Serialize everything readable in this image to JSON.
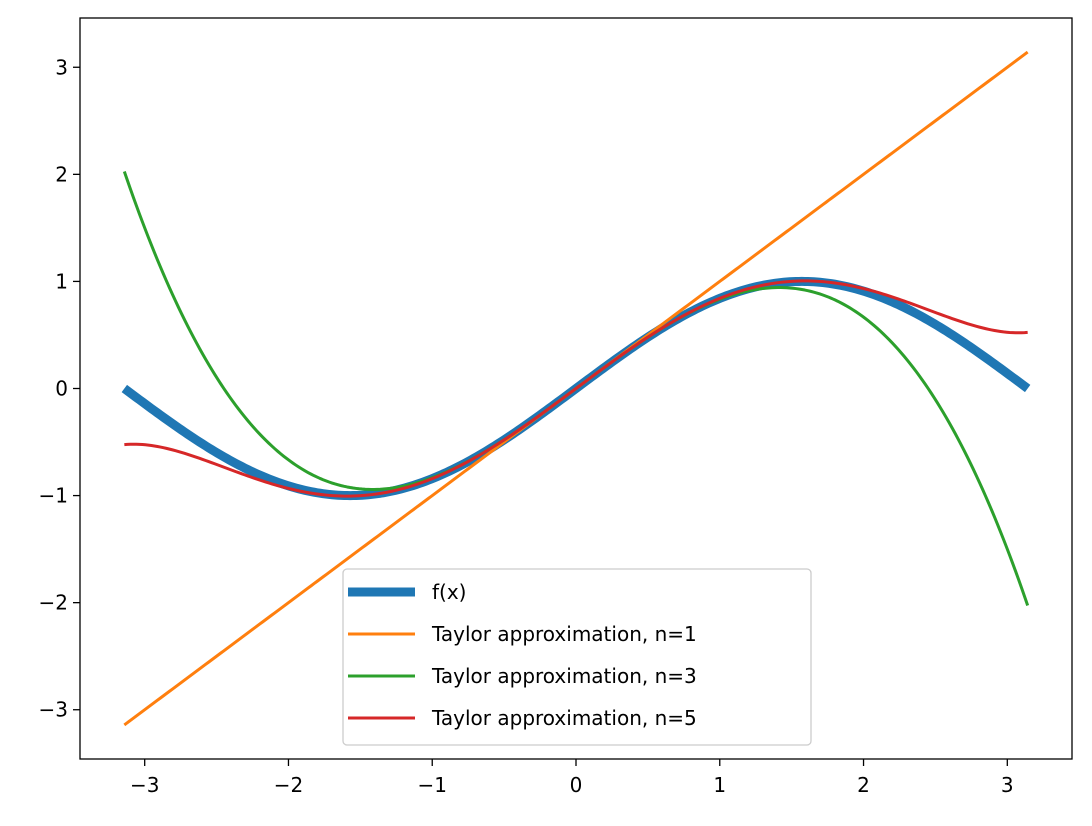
{
  "chart_data": {
    "type": "line",
    "title": "",
    "xlabel": "",
    "ylabel": "",
    "xlim": [
      -3.45,
      3.45
    ],
    "ylim": [
      -3.46,
      3.46
    ],
    "grid": false,
    "legend_position": "lower center",
    "xticks": [
      -3,
      -2,
      -1,
      0,
      1,
      2,
      3
    ],
    "xtick_labels": [
      "−3",
      "−2",
      "−1",
      "0",
      "1",
      "2",
      "3"
    ],
    "yticks": [
      -3,
      -2,
      -1,
      0,
      1,
      2,
      3
    ],
    "ytick_labels": [
      "−3",
      "−2",
      "−1",
      "0",
      "1",
      "2",
      "3"
    ],
    "x_range": [
      -3.14159,
      3.14159
    ],
    "series": [
      {
        "name": "f(x)",
        "function": "sin(x)",
        "color": "#1f77b4",
        "line_width": "thick"
      },
      {
        "name": "Taylor approximation, n=1",
        "function": "x",
        "color": "#ff7f0e",
        "line_width": "normal"
      },
      {
        "name": "Taylor approximation, n=3",
        "function": "x - x^3/6",
        "color": "#2ca02c",
        "line_width": "normal"
      },
      {
        "name": "Taylor approximation, n=5",
        "function": "x - x^3/6 + x^5/120",
        "color": "#d62728",
        "line_width": "normal"
      }
    ]
  }
}
